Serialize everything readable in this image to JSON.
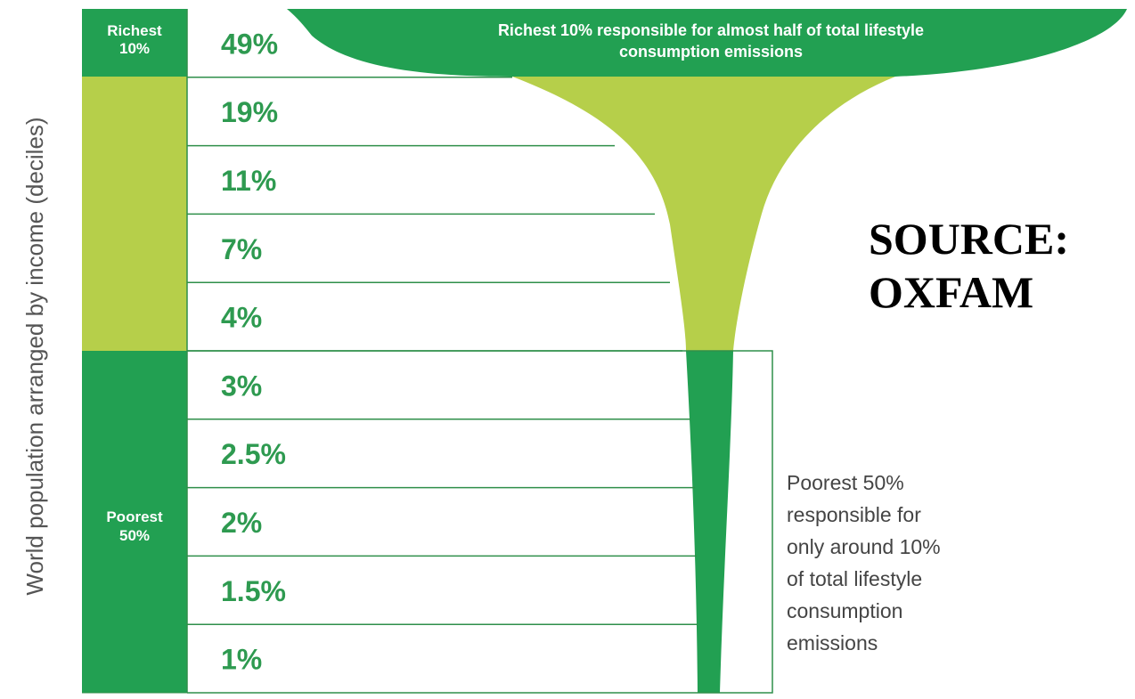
{
  "chart_data": {
    "type": "bar",
    "ylabel": "World population arranged by income (deciles)",
    "categories": [
      "Richest 10%",
      "",
      "",
      "",
      "",
      "",
      "",
      "",
      "",
      ""
    ],
    "values": [
      49,
      19,
      11,
      7,
      4,
      3,
      2.5,
      2,
      1.5,
      1
    ],
    "value_labels": [
      "49%",
      "19%",
      "11%",
      "7%",
      "4%",
      "3%",
      "2.5%",
      "2%",
      "1.5%",
      "1%"
    ],
    "group_labels": {
      "richest": [
        "Richest",
        "10%"
      ],
      "poorest": [
        "Poorest",
        "50%"
      ]
    },
    "annotations": {
      "richest": [
        "Richest 10% responsible for almost half of total lifestyle",
        "consumption emissions"
      ],
      "poorest": [
        "Poorest 50%",
        "responsible for",
        "only around 10%",
        "of total lifestyle",
        "consumption",
        "emissions"
      ]
    },
    "source": [
      "SOURCE:",
      "OXFAM"
    ],
    "colors": {
      "dark_green": "#22a052",
      "light_green": "#b6cf4a",
      "value_text": "#2e9a50",
      "row_line": "#2f8f4a",
      "annotation_text": "#444444",
      "source_text": "#000000"
    }
  }
}
